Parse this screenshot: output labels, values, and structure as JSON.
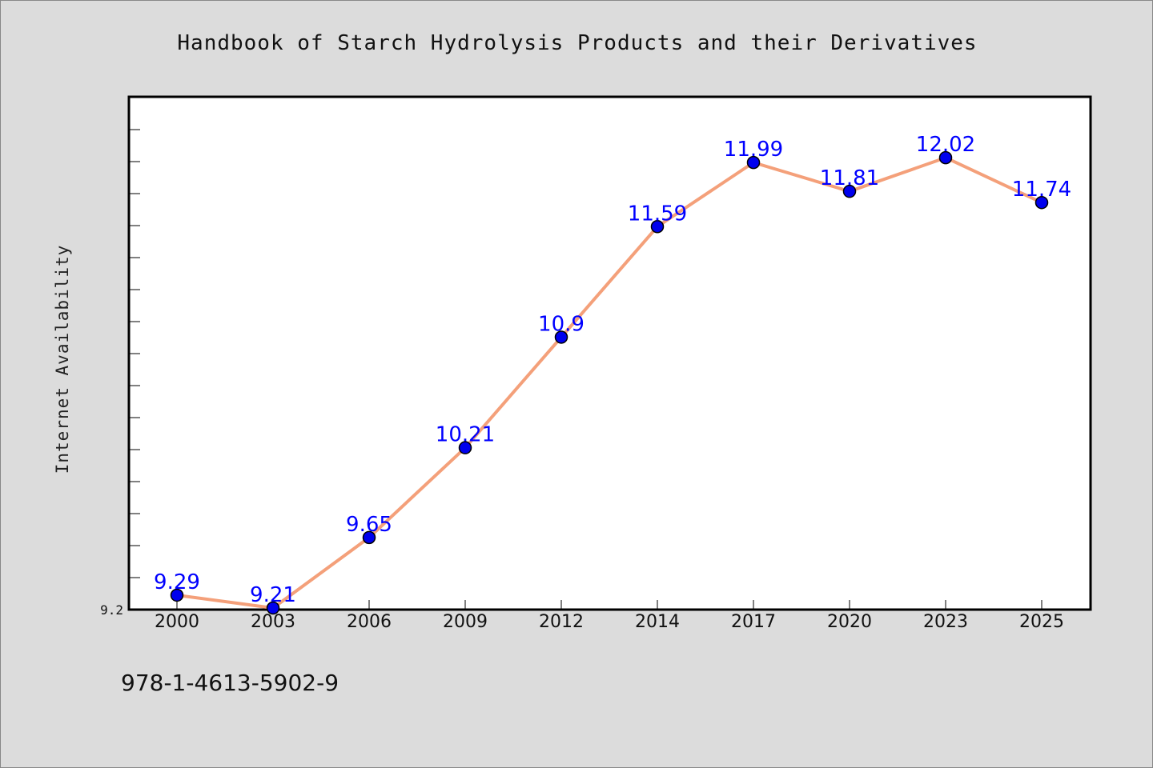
{
  "chart_data": {
    "type": "line",
    "title": "Handbook of Starch Hydrolysis Products and their Derivatives",
    "xlabel": "",
    "ylabel": "Internet Availability",
    "categories": [
      "2000",
      "2003",
      "2006",
      "2009",
      "2012",
      "2014",
      "2017",
      "2020",
      "2023",
      "2025"
    ],
    "series": [
      {
        "values": [
          9.29,
          9.21,
          9.65,
          10.21,
          10.9,
          11.59,
          11.99,
          11.81,
          12.02,
          11.74
        ]
      }
    ],
    "data_labels": [
      "9.29",
      "9.21",
      "9.65",
      "10.21",
      "10.9",
      "11.59",
      "11.99",
      "11.81",
      "12.02",
      "11.74"
    ],
    "ylim": [
      9.2,
      12.4
    ],
    "yticks": [
      {
        "value": 9.2,
        "label": "9.2"
      }
    ],
    "grid": false,
    "legend": "none",
    "annotation": "978-1-4613-5902-9",
    "colors": {
      "line": "#f4a07a",
      "marker": "#0000ee",
      "marker_edge": "#000000",
      "data_label": "#0000ff",
      "plot_bg": "#ffffff",
      "figure_bg": "#dcdcdc"
    }
  }
}
